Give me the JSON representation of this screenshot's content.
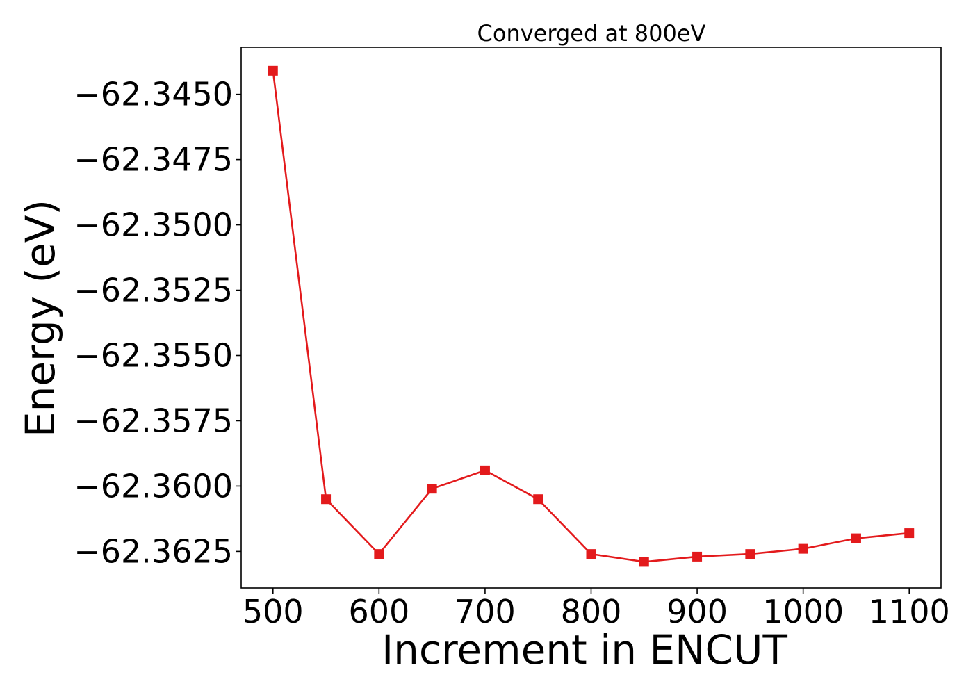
{
  "chart_data": {
    "type": "line",
    "title": "Converged at 800eV",
    "xlabel": "Increment in ENCUT",
    "ylabel": "Energy (eV)",
    "x": [
      500,
      550,
      600,
      650,
      700,
      750,
      800,
      850,
      900,
      950,
      1000,
      1050,
      1100
    ],
    "series": [
      {
        "values": [
          -62.3441,
          -62.3605,
          -62.3626,
          -62.3601,
          -62.3594,
          -62.3605,
          -62.3626,
          -62.3629,
          -62.3627,
          -62.3626,
          -62.3624,
          -62.362,
          -62.3618
        ],
        "color": "#e31a1c",
        "marker": "square"
      }
    ],
    "xlim": [
      470,
      1130
    ],
    "ylim": [
      -62.3639,
      -62.3432
    ],
    "xticks": [
      500,
      600,
      700,
      800,
      900,
      1000,
      1100
    ],
    "xtick_labels": [
      "500",
      "600",
      "700",
      "800",
      "900",
      "1000",
      "1100"
    ],
    "yticks": [
      -62.345,
      -62.3475,
      -62.35,
      -62.3525,
      -62.355,
      -62.3575,
      -62.36,
      -62.3625
    ],
    "ytick_labels": [
      "−62.3450",
      "−62.3475",
      "−62.3500",
      "−62.3525",
      "−62.3550",
      "−62.3575",
      "−62.3600",
      "−62.3625"
    ],
    "grid": false,
    "legend": "none"
  }
}
